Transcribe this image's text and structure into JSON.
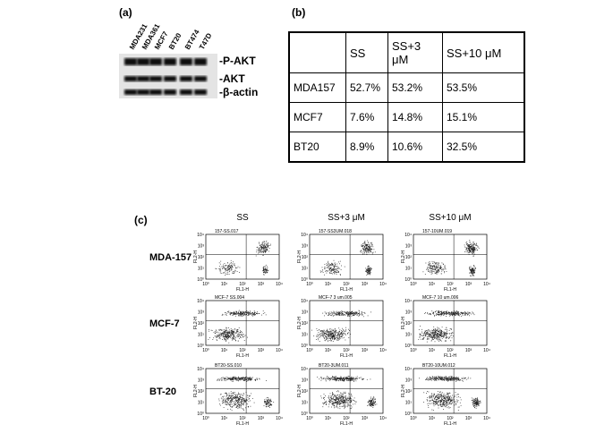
{
  "panel_a": {
    "label": "(a)",
    "lanes": [
      "MDA231",
      "MDA361",
      "MCF7",
      "BT20",
      "BT474",
      "T47D"
    ],
    "bands": [
      "-P-AKT",
      "-AKT",
      "-β-actin"
    ]
  },
  "panel_b": {
    "label": "(b)",
    "table": {
      "header": [
        "SS",
        "SS+3 μM",
        "SS+10 μM"
      ],
      "rows": [
        [
          "MDA157",
          "52.7%",
          "53.2%",
          "53.5%"
        ],
        [
          "MCF7",
          "7.6%",
          "14.8%",
          "15.1%"
        ],
        [
          "BT20",
          "8.9%",
          "10.6%",
          "32.5%"
        ]
      ]
    }
  },
  "panel_c": {
    "label": "(c)",
    "columns": [
      "SS",
      "SS+3 μM",
      "SS+10 μM"
    ],
    "rows": [
      {
        "label": "MDA-157",
        "plots": [
          "157-SS.017",
          "157-SS3UM.018",
          "157-10UM.019"
        ]
      },
      {
        "label": "MCF-7",
        "plots": [
          "MCF-7 SS.004",
          "MCF-7 3 um.005",
          "MCF-7 10 um.006"
        ]
      },
      {
        "label": "BT-20",
        "plots": [
          "BT20-SS.010",
          "BT20-3UM.011",
          "BT20-10UM.012"
        ]
      }
    ],
    "x_axis": "FL1-H",
    "y_axis": "FL2-H",
    "ticks": [
      "10⁰",
      "10¹",
      "10²",
      "10³",
      "10⁴"
    ]
  }
}
